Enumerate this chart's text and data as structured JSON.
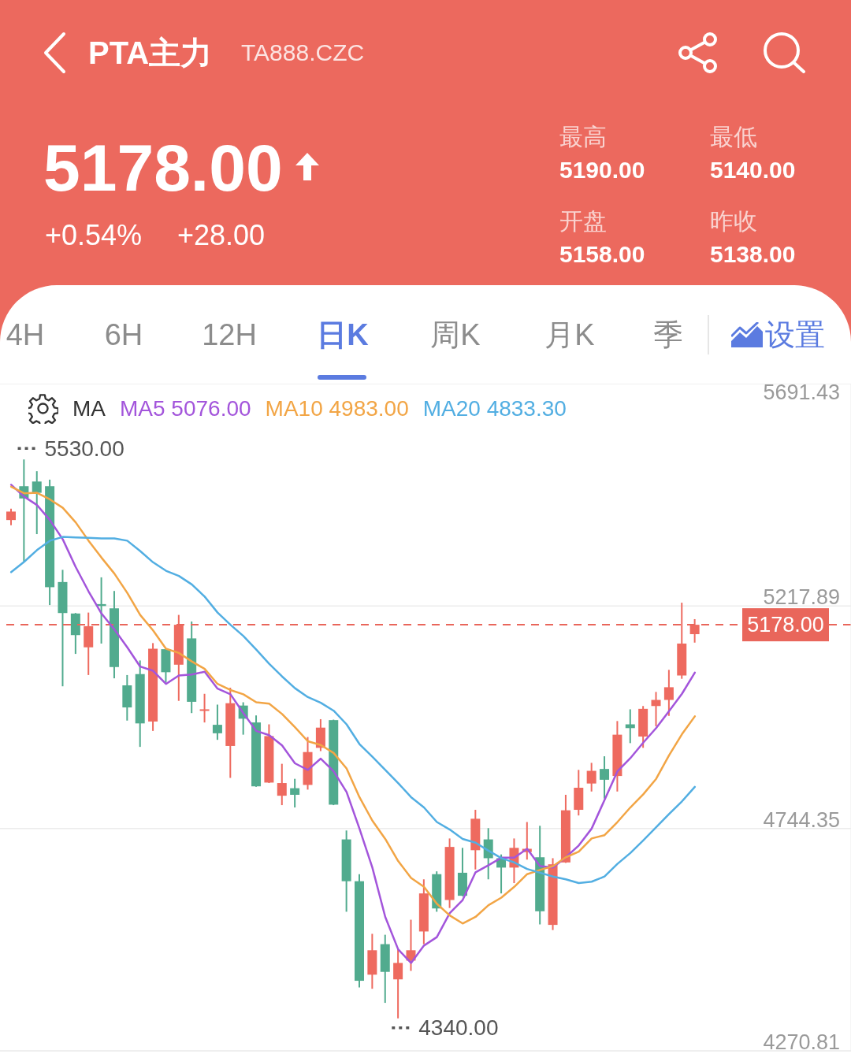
{
  "chart_data": {
    "type": "candlestick",
    "title": "PTA主力",
    "subtitle": "TA888.CZC",
    "categories": [
      null,
      null,
      null,
      null,
      null,
      null,
      null,
      null,
      null,
      null,
      null,
      null,
      null,
      null,
      null,
      null,
      null,
      null,
      null,
      null,
      null,
      null,
      null,
      null,
      null,
      null,
      null,
      null,
      null,
      null,
      null,
      null,
      null,
      null,
      null,
      null,
      null,
      null,
      null,
      null,
      null,
      null,
      null,
      null,
      null,
      null,
      null,
      null,
      null,
      null,
      null,
      null,
      null,
      null
    ],
    "ohlc": [
      [
        5401,
        5425,
        5390,
        5419
      ],
      [
        5473,
        5530,
        5312,
        5447
      ],
      [
        5483,
        5505,
        5371,
        5459
      ],
      [
        5473,
        5487,
        5220,
        5258
      ],
      [
        5269,
        5295,
        5047,
        5203
      ],
      [
        5202,
        5203,
        5116,
        5156
      ],
      [
        5130,
        5204,
        5071,
        5175
      ],
      [
        5222,
        5279,
        5138,
        5218
      ],
      [
        5213,
        5250,
        5064,
        5088
      ],
      [
        5049,
        5071,
        4974,
        5002
      ],
      [
        5073,
        5102,
        4918,
        4968
      ],
      [
        4972,
        5139,
        4952,
        5127
      ],
      [
        5126,
        5127,
        5055,
        5077
      ],
      [
        5093,
        5199,
        5016,
        5178
      ],
      [
        5149,
        5185,
        4990,
        5014
      ],
      [
        4995,
        5031,
        4970,
        4998
      ],
      [
        4965,
        5008,
        4933,
        4947
      ],
      [
        4920,
        5044,
        4852,
        5011
      ],
      [
        5006,
        5013,
        4944,
        4978
      ],
      [
        4970,
        4985,
        4833,
        4834
      ],
      [
        4842,
        4966,
        4841,
        4941
      ],
      [
        4814,
        4882,
        4794,
        4841
      ],
      [
        4830,
        4850,
        4789,
        4816
      ],
      [
        4837,
        4939,
        4827,
        4907
      ],
      [
        4916,
        4977,
        4909,
        4959
      ],
      [
        4975,
        4976,
        4794,
        4795
      ],
      [
        4721,
        4740,
        4567,
        4632
      ],
      [
        4632,
        4647,
        4406,
        4420
      ],
      [
        4433,
        4520,
        4403,
        4485
      ],
      [
        4498,
        4518,
        4373,
        4439
      ],
      [
        4423,
        4487,
        4340,
        4458
      ],
      [
        4463,
        4550,
        4441,
        4485
      ],
      [
        4525,
        4636,
        4498,
        4606
      ],
      [
        4647,
        4653,
        4567,
        4574
      ],
      [
        4592,
        4723,
        4575,
        4705
      ],
      [
        4650,
        4703,
        4600,
        4601
      ],
      [
        4698,
        4784,
        4657,
        4765
      ],
      [
        4721,
        4745,
        4636,
        4681
      ],
      [
        4681,
        4689,
        4606,
        4661
      ],
      [
        4661,
        4723,
        4628,
        4703
      ],
      [
        4694,
        4758,
        4678,
        4701
      ],
      [
        4683,
        4750,
        4540,
        4568
      ],
      [
        4539,
        4681,
        4528,
        4668
      ],
      [
        4672,
        4816,
        4671,
        4783
      ],
      [
        4784,
        4869,
        4772,
        4831
      ],
      [
        4840,
        4884,
        4823,
        4867
      ],
      [
        4871,
        4898,
        4808,
        4848
      ],
      [
        4856,
        4973,
        4823,
        4944
      ],
      [
        4966,
        4998,
        4926,
        4958
      ],
      [
        4940,
        5005,
        4916,
        4999
      ],
      [
        5005,
        5035,
        4962,
        5018
      ],
      [
        5018,
        5082,
        4984,
        5045
      ],
      [
        5070,
        5225,
        5063,
        5138
      ],
      [
        5158,
        5190,
        5140,
        5178
      ]
    ],
    "colors": [
      "#ee6a5f",
      "#51ab8e",
      "#51ab8e",
      "#51ab8e",
      "#51ab8e",
      "#51ab8e",
      "#ee6a5f",
      "#51ab8e",
      "#51ab8e",
      "#51ab8e",
      "#51ab8e",
      "#ee6a5f",
      "#51ab8e",
      "#ee6a5f",
      "#51ab8e",
      "#ee6a5f",
      "#51ab8e",
      "#ee6a5f",
      "#51ab8e",
      "#51ab8e",
      "#ee6a5f",
      "#ee6a5f",
      "#51ab8e",
      "#ee6a5f",
      "#ee6a5f",
      "#51ab8e",
      "#51ab8e",
      "#51ab8e",
      "#ee6a5f",
      "#51ab8e",
      "#ee6a5f",
      "#ee6a5f",
      "#ee6a5f",
      "#51ab8e",
      "#ee6a5f",
      "#51ab8e",
      "#ee6a5f",
      "#51ab8e",
      "#51ab8e",
      "#ee6a5f",
      "#ee6a5f",
      "#51ab8e",
      "#ee6a5f",
      "#ee6a5f",
      "#ee6a5f",
      "#ee6a5f",
      "#51ab8e",
      "#ee6a5f",
      "#51ab8e",
      "#ee6a5f",
      "#ee6a5f",
      "#ee6a5f",
      "#ee6a5f",
      "#ee6a5f"
    ],
    "series": [
      {
        "name": "MA5 5076.00",
        "type": "line",
        "color": "#a355db",
        "values": [
          5476,
          5451,
          5433,
          5401,
          5360,
          5301,
          5249,
          5202,
          5168,
          5130,
          5089,
          5080,
          5052,
          5070,
          5072,
          5078,
          5042,
          5030,
          4990,
          4952,
          4943,
          4921,
          4883,
          4869,
          4893,
          4866,
          4822,
          4744,
          4661,
          4556,
          4487,
          4458,
          4495,
          4513,
          4564,
          4592,
          4651,
          4666,
          4682,
          4682,
          4701,
          4664,
          4661,
          4683,
          4708,
          4744,
          4805,
          4866,
          4894,
          4927,
          4958,
          4994,
          5031,
          5076
        ]
      },
      {
        "name": "MA10 4983.00",
        "type": "line",
        "color": "#f2a545",
        "values": [
          5472,
          5458,
          5459,
          5445,
          5427,
          5396,
          5357,
          5321,
          5287,
          5246,
          5199,
          5166,
          5127,
          5118,
          5100,
          5084,
          5052,
          5039,
          5030,
          5013,
          5010,
          4988,
          4960,
          4930,
          4922,
          4905,
          4872,
          4811,
          4761,
          4722,
          4675,
          4639,
          4620,
          4584,
          4559,
          4542,
          4556,
          4581,
          4597,
          4620,
          4647,
          4656,
          4664,
          4683,
          4695,
          4723,
          4730,
          4758,
          4789,
          4817,
          4850,
          4900,
          4945,
          4983
        ]
      },
      {
        "name": "MA20 4833.30",
        "type": "line",
        "color": "#52aee2",
        "values": [
          5290,
          5312,
          5337,
          5357,
          5365,
          5364,
          5363,
          5362,
          5362,
          5357,
          5335,
          5311,
          5293,
          5282,
          5264,
          5238,
          5204,
          5178,
          5154,
          5125,
          5095,
          5068,
          5043,
          5024,
          5012,
          4995,
          4966,
          4924,
          4897,
          4869,
          4841,
          4811,
          4789,
          4758,
          4742,
          4722,
          4714,
          4697,
          4681,
          4672,
          4658,
          4650,
          4642,
          4636,
          4628,
          4631,
          4642,
          4669,
          4692,
          4719,
          4747,
          4775,
          4802,
          4833
        ]
      }
    ],
    "ylim": [
      4270.81,
      5691.43
    ],
    "yticks": [
      4270.81,
      4744.35,
      5217.89,
      5691.43
    ],
    "grid": "y",
    "tick_labels": "y",
    "legend": "top left",
    "legend_title": "MA",
    "ref_lines": [
      {
        "axis": "y",
        "value": 5178,
        "color": "#e9665b",
        "line_style": "dashed"
      }
    ],
    "annotations": [
      "5178.00",
      "+0.54%",
      "+28.00",
      "最高",
      "5190.00",
      "最低",
      "5140.00",
      "开盘",
      "5158.00",
      "昨收",
      "5138.00",
      "4H",
      "6H",
      "12H",
      "日K",
      "周K",
      "月K",
      "季",
      "设置",
      "5530.00",
      "4340.00",
      {
        "text": "5178.00",
        "y": 5178
      }
    ]
  }
}
